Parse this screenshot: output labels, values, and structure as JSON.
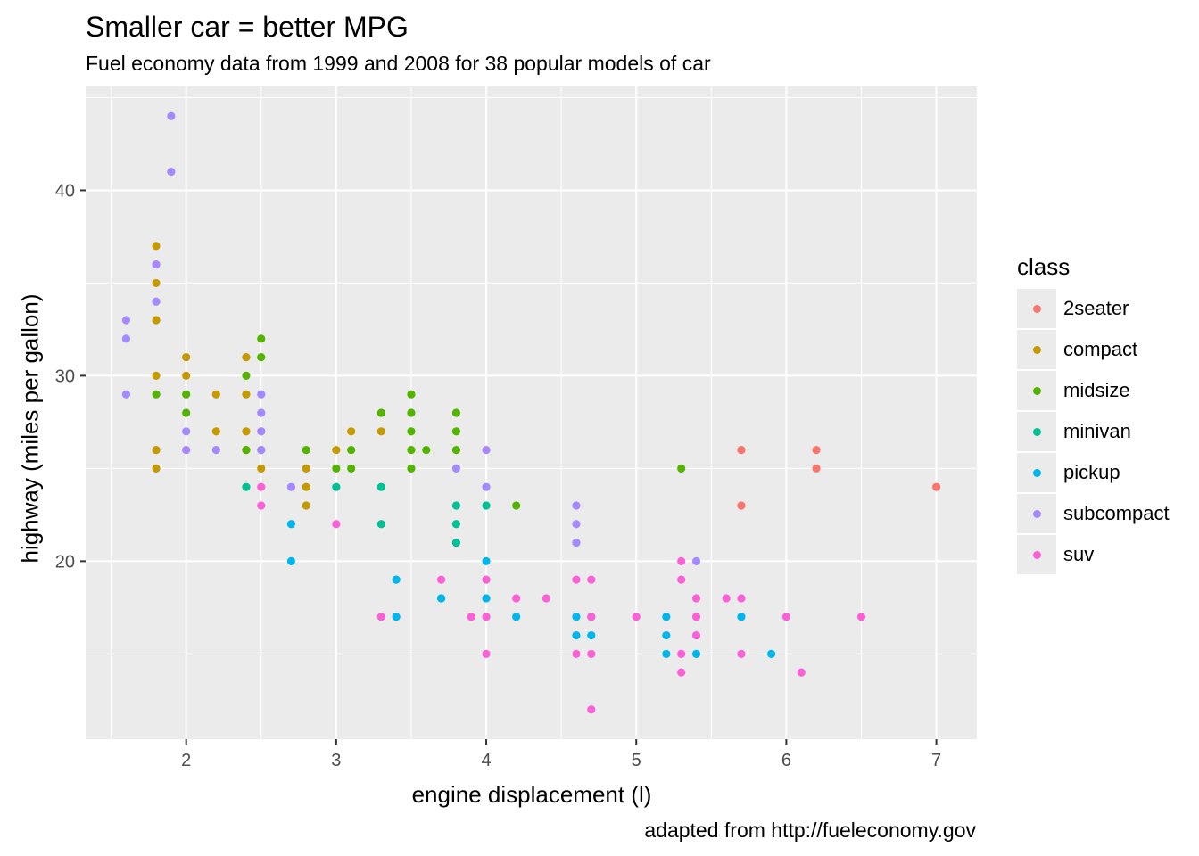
{
  "title": "Smaller car = better MPG",
  "subtitle": "Fuel economy data from 1999 and 2008 for 38 popular models of car",
  "caption": "adapted from http://fueleconomy.gov",
  "chart_data": {
    "type": "scatter",
    "xlabel": "engine displacement (l)",
    "ylabel": "highway (miles per gallon)",
    "xlim": [
      1.33,
      7.27
    ],
    "ylim": [
      10.4,
      45.6
    ],
    "xticks": [
      2,
      3,
      4,
      5,
      6,
      7
    ],
    "yticks": [
      20,
      30,
      40
    ],
    "grid": true,
    "legend_title": "class",
    "legend_position": "right",
    "series": [
      {
        "name": "2seater",
        "color": "#F8766D",
        "points": [
          [
            5.7,
            26
          ],
          [
            5.7,
            23
          ],
          [
            6.2,
            26
          ],
          [
            6.2,
            25
          ],
          [
            7.0,
            24
          ]
        ]
      },
      {
        "name": "compact",
        "color": "#C49A00",
        "points": [
          [
            1.8,
            37
          ],
          [
            1.8,
            35
          ],
          [
            1.8,
            33
          ],
          [
            1.8,
            30
          ],
          [
            1.8,
            26
          ],
          [
            1.8,
            25
          ],
          [
            2.0,
            31
          ],
          [
            2.0,
            30
          ],
          [
            2.2,
            29
          ],
          [
            2.2,
            27
          ],
          [
            2.4,
            31
          ],
          [
            2.4,
            29
          ],
          [
            2.4,
            27
          ],
          [
            2.4,
            26
          ],
          [
            2.5,
            27
          ],
          [
            2.5,
            26
          ],
          [
            2.5,
            25
          ],
          [
            2.8,
            25
          ],
          [
            2.8,
            24
          ],
          [
            2.8,
            23
          ],
          [
            3.0,
            26
          ],
          [
            3.1,
            27
          ],
          [
            3.3,
            27
          ]
        ]
      },
      {
        "name": "midsize",
        "color": "#53B400",
        "points": [
          [
            1.8,
            29
          ],
          [
            2.0,
            29
          ],
          [
            2.0,
            28
          ],
          [
            2.4,
            30
          ],
          [
            2.4,
            26
          ],
          [
            2.5,
            32
          ],
          [
            2.5,
            31
          ],
          [
            2.8,
            26
          ],
          [
            3.0,
            25
          ],
          [
            3.1,
            26
          ],
          [
            3.1,
            25
          ],
          [
            3.3,
            28
          ],
          [
            3.5,
            29
          ],
          [
            3.5,
            28
          ],
          [
            3.5,
            27
          ],
          [
            3.5,
            26
          ],
          [
            3.5,
            25
          ],
          [
            3.6,
            26
          ],
          [
            3.8,
            28
          ],
          [
            3.8,
            27
          ],
          [
            3.8,
            26
          ],
          [
            4.2,
            23
          ],
          [
            5.3,
            25
          ]
        ]
      },
      {
        "name": "minivan",
        "color": "#00C094",
        "points": [
          [
            2.4,
            24
          ],
          [
            3.0,
            24
          ],
          [
            3.3,
            24
          ],
          [
            3.3,
            22
          ],
          [
            3.8,
            23
          ],
          [
            3.8,
            22
          ],
          [
            3.8,
            21
          ],
          [
            3.7,
            18
          ],
          [
            4.0,
            23
          ]
        ]
      },
      {
        "name": "pickup",
        "color": "#00B6EB",
        "points": [
          [
            2.7,
            22
          ],
          [
            2.7,
            20
          ],
          [
            3.4,
            19
          ],
          [
            3.4,
            17
          ],
          [
            3.7,
            18
          ],
          [
            4.0,
            20
          ],
          [
            4.0,
            18
          ],
          [
            4.2,
            17
          ],
          [
            4.6,
            17
          ],
          [
            4.6,
            16
          ],
          [
            4.7,
            17
          ],
          [
            4.7,
            16
          ],
          [
            5.2,
            17
          ],
          [
            5.2,
            16
          ],
          [
            5.2,
            15
          ],
          [
            5.4,
            15
          ],
          [
            5.7,
            17
          ],
          [
            5.9,
            15
          ]
        ]
      },
      {
        "name": "subcompact",
        "color": "#A58AFF",
        "points": [
          [
            1.6,
            33
          ],
          [
            1.6,
            32
          ],
          [
            1.6,
            29
          ],
          [
            1.8,
            36
          ],
          [
            1.8,
            34
          ],
          [
            1.9,
            44
          ],
          [
            1.9,
            41
          ],
          [
            2.0,
            27
          ],
          [
            2.0,
            26
          ],
          [
            2.2,
            26
          ],
          [
            2.5,
            29
          ],
          [
            2.5,
            28
          ],
          [
            2.5,
            27
          ],
          [
            2.5,
            26
          ],
          [
            2.7,
            24
          ],
          [
            3.8,
            25
          ],
          [
            4.0,
            26
          ],
          [
            4.0,
            24
          ],
          [
            4.6,
            23
          ],
          [
            4.6,
            22
          ],
          [
            4.6,
            21
          ],
          [
            5.4,
            20
          ]
        ]
      },
      {
        "name": "suv",
        "color": "#FB61D7",
        "points": [
          [
            2.5,
            24
          ],
          [
            2.5,
            23
          ],
          [
            3.0,
            22
          ],
          [
            3.3,
            17
          ],
          [
            3.7,
            19
          ],
          [
            3.9,
            17
          ],
          [
            4.0,
            19
          ],
          [
            4.0,
            17
          ],
          [
            4.0,
            15
          ],
          [
            4.2,
            18
          ],
          [
            4.4,
            18
          ],
          [
            4.6,
            19
          ],
          [
            4.6,
            15
          ],
          [
            4.7,
            19
          ],
          [
            4.7,
            17
          ],
          [
            4.7,
            15
          ],
          [
            4.7,
            12
          ],
          [
            5.0,
            17
          ],
          [
            5.3,
            20
          ],
          [
            5.3,
            19
          ],
          [
            5.3,
            15
          ],
          [
            5.3,
            14
          ],
          [
            5.4,
            18
          ],
          [
            5.4,
            17
          ],
          [
            5.4,
            16
          ],
          [
            5.6,
            18
          ],
          [
            5.7,
            18
          ],
          [
            5.7,
            15
          ],
          [
            6.0,
            17
          ],
          [
            6.1,
            14
          ],
          [
            6.5,
            17
          ]
        ]
      }
    ]
  }
}
